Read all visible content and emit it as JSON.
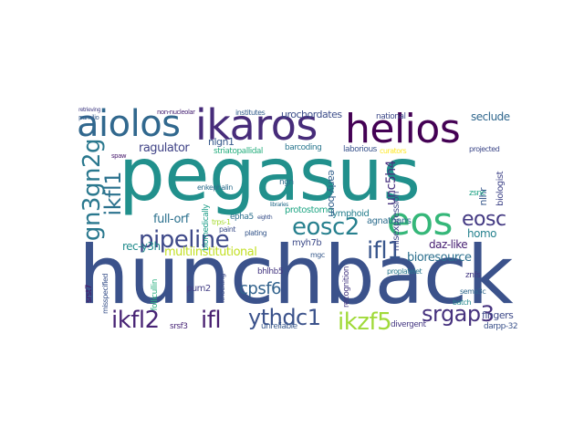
{
  "words": [
    {
      "text": "pegasus",
      "color": "#21908c"
    },
    {
      "text": "hunchback",
      "color": "#3b528b"
    },
    {
      "text": "ikaros",
      "color": "#472c7a"
    },
    {
      "text": "helios",
      "color": "#440154"
    },
    {
      "text": "aiolos",
      "color": "#31688e"
    },
    {
      "text": "eos",
      "color": "#35b779"
    },
    {
      "text": "gn3gn2g",
      "color": "#2a788e"
    },
    {
      "text": "ikfl1",
      "color": "#2c728e"
    },
    {
      "text": "pipeline",
      "color": "#3e4989"
    },
    {
      "text": "eosc2",
      "color": "#27808e"
    },
    {
      "text": "eosc",
      "color": "#443a83"
    },
    {
      "text": "ifl1",
      "color": "#39568c"
    },
    {
      "text": "ikfl2",
      "color": "#482475"
    },
    {
      "text": "ifl",
      "color": "#481f70"
    },
    {
      "text": "ythdc1",
      "color": "#3b528b"
    },
    {
      "text": "ikzf5",
      "color": "#a0da39"
    },
    {
      "text": "srgap3",
      "color": "#46327e"
    },
    {
      "text": "cpsf6",
      "color": "#33638d"
    },
    {
      "text": "ragulator",
      "color": "#414487"
    },
    {
      "text": "nlgn1",
      "color": "#38598c"
    },
    {
      "text": "urochordates",
      "color": "#3d4e8a"
    },
    {
      "text": "seclude",
      "color": "#31688e"
    },
    {
      "text": "full-orf",
      "color": "#2c718e"
    },
    {
      "text": "rec-y3h",
      "color": "#228c8d"
    },
    {
      "text": "multiinstitutional",
      "color": "#c2df23"
    },
    {
      "text": "bioresource",
      "color": "#2d708e"
    },
    {
      "text": "daz-like",
      "color": "#482173"
    },
    {
      "text": "homo",
      "color": "#26828e"
    },
    {
      "text": "fingers",
      "color": "#3e4a89"
    },
    {
      "text": "darpp-32",
      "color": "#3b528b"
    },
    {
      "text": "divergent",
      "color": "#453882"
    },
    {
      "text": "unreliable",
      "color": "#38588c"
    },
    {
      "text": "srsf3",
      "color": "#482677"
    },
    {
      "text": "pum2",
      "color": "#433e85"
    },
    {
      "text": "bhlhb5",
      "color": "#453781"
    },
    {
      "text": "myh7b",
      "color": "#3e4c8a"
    },
    {
      "text": "agnathans",
      "color": "#2e6e8e"
    },
    {
      "text": "lymphoid",
      "color": "#277f8e"
    },
    {
      "text": "protostome",
      "color": "#21a685"
    },
    {
      "text": "unc5h4",
      "color": "#46307e"
    },
    {
      "text": "early-born",
      "color": "#34618d"
    },
    {
      "text": "misexpression",
      "color": "#3f4889"
    },
    {
      "text": "nlhr",
      "color": "#38588c"
    },
    {
      "text": "biologist",
      "color": "#404588"
    },
    {
      "text": "zsnc",
      "color": "#20a386"
    },
    {
      "text": "barcoding",
      "color": "#2a768e"
    },
    {
      "text": "laborious",
      "color": "#3a548c"
    },
    {
      "text": "national",
      "color": "#3e4a89"
    },
    {
      "text": "institutes",
      "color": "#355f8d"
    },
    {
      "text": "striatopallidal",
      "color": "#29af7f"
    },
    {
      "text": "non-nucleolar",
      "color": "#482475"
    },
    {
      "text": "pumilio",
      "color": "#365c8d"
    },
    {
      "text": "epha5",
      "color": "#2d708e"
    },
    {
      "text": "plating",
      "color": "#38588c"
    },
    {
      "text": "paint",
      "color": "#3c4f8a"
    },
    {
      "text": "mgc",
      "color": "#375a8c"
    },
    {
      "text": "ngn",
      "color": "#2f6c8e"
    },
    {
      "text": "recognition",
      "color": "#453781"
    },
    {
      "text": "sema3c",
      "color": "#31688e"
    },
    {
      "text": "batch",
      "color": "#23898e"
    },
    {
      "text": "znfs",
      "color": "#443983"
    },
    {
      "text": "proplatelet",
      "color": "#2a778e"
    },
    {
      "text": "trps-1",
      "color": "#a8db34"
    },
    {
      "text": "spaw",
      "color": "#481b6d"
    },
    {
      "text": "enkephalin",
      "color": "#2e6f8e"
    },
    {
      "text": "biomedically",
      "color": "#1f9e89"
    },
    {
      "text": "srst7",
      "color": "#471365"
    },
    {
      "text": "misspecified",
      "color": "#3a538b"
    },
    {
      "text": "follicullin",
      "color": "#29af7f"
    },
    {
      "text": "knocking",
      "color": "#3e4c8a"
    },
    {
      "text": "projected",
      "color": "#3e4989"
    },
    {
      "text": "curators",
      "color": "#fde725"
    },
    {
      "text": "retrieving",
      "color": "#433e85"
    },
    {
      "text": "eighth",
      "color": "#3b528b"
    },
    {
      "text": "libraries",
      "color": "#2d708e"
    }
  ]
}
